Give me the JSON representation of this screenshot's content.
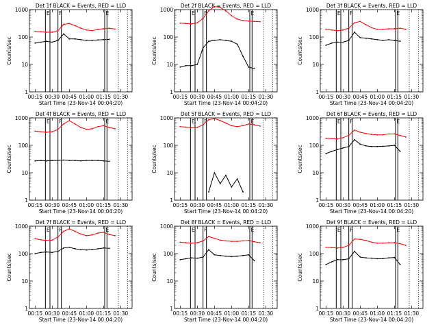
{
  "colors": {
    "events": "#000000",
    "lld": "#ff0000",
    "axes": "#000000"
  },
  "chart_data": [
    {
      "type": "line",
      "title": "Det 1f BLACK = Events, RED = LLD",
      "xlabel": "Start Time (23-Nov-14 00:04:20)",
      "ylabel": "Counts/sec",
      "yscale": "log",
      "ylim": [
        1,
        1000
      ],
      "x_tick_labels": [
        "00:15",
        "00:30",
        "00:45",
        "01:00",
        "01:15",
        "01:30"
      ],
      "y_tick_labels": [
        "1",
        "10",
        "100",
        "1000"
      ],
      "x": [
        "00:10",
        "00:15",
        "00:20",
        "00:25",
        "00:30",
        "00:35",
        "00:40",
        "00:45",
        "00:50",
        "00:55",
        "01:00",
        "01:05",
        "01:10",
        "01:15",
        "01:20",
        "01:25"
      ],
      "series": [
        {
          "name": "LLD",
          "color": "red",
          "values": [
            null,
            160,
            155,
            150,
            150,
            170,
            290,
            310,
            260,
            210,
            180,
            170,
            190,
            200,
            210,
            195
          ]
        },
        {
          "name": "Events",
          "color": "black",
          "values": [
            null,
            60,
            65,
            70,
            65,
            75,
            130,
            85,
            85,
            80,
            75,
            75,
            78,
            80,
            82,
            null
          ]
        }
      ],
      "markers": [
        {
          "x": "00:24",
          "label": "E"
        },
        {
          "x": "00:28",
          "label": ""
        },
        {
          "x": "00:35",
          "label": "F"
        },
        {
          "x": "00:38",
          "label": ""
        },
        {
          "x": "01:16",
          "label": "E"
        },
        {
          "x": "01:18",
          "label": ""
        }
      ]
    },
    {
      "type": "line",
      "title": "Det 2f BLACK = Events, RED = LLD",
      "xlabel": "Start Time (23-Nov-14 00:04:20)",
      "ylabel": "Counts/sec",
      "yscale": "log",
      "ylim": [
        1,
        1000
      ],
      "x_tick_labels": [
        "00:15",
        "00:30",
        "00:45",
        "01:00",
        "01:15",
        "01:30"
      ],
      "y_tick_labels": [
        "1",
        "10",
        "100",
        "1000"
      ],
      "x": [
        "00:10",
        "00:15",
        "00:20",
        "00:25",
        "00:30",
        "00:35",
        "00:40",
        "00:45",
        "00:50",
        "00:55",
        "01:00",
        "01:05",
        "01:10",
        "01:15",
        "01:20",
        "01:25"
      ],
      "series": [
        {
          "name": "LLD",
          "color": "red",
          "values": [
            null,
            320,
            310,
            300,
            330,
            480,
            900,
            1300,
            1200,
            900,
            600,
            450,
            400,
            380,
            370,
            360
          ]
        },
        {
          "name": "Events",
          "color": "black",
          "values": [
            null,
            8,
            9,
            9,
            10,
            40,
            70,
            75,
            80,
            75,
            70,
            55,
            20,
            8,
            7,
            null
          ]
        }
      ],
      "markers": [
        {
          "x": "00:24",
          "label": "E"
        },
        {
          "x": "00:28",
          "label": ""
        },
        {
          "x": "00:35",
          "label": "F"
        },
        {
          "x": "00:38",
          "label": ""
        },
        {
          "x": "01:16",
          "label": "E"
        },
        {
          "x": "01:18",
          "label": ""
        }
      ]
    },
    {
      "type": "line",
      "title": "Det 3f BLACK = Events, RED = LLD",
      "xlabel": "Start Time (23-Nov-14 00:04:20)",
      "ylabel": "Counts/sec",
      "yscale": "log",
      "ylim": [
        1,
        1000
      ],
      "x_tick_labels": [
        "00:15",
        "00:30",
        "00:45",
        "01:00",
        "01:15",
        "01:30"
      ],
      "y_tick_labels": [
        "1",
        "10",
        "100",
        "1000"
      ],
      "x": [
        "00:10",
        "00:15",
        "00:20",
        "00:25",
        "00:30",
        "00:35",
        "00:40",
        "00:45",
        "00:50",
        "00:55",
        "01:00",
        "01:05",
        "01:10",
        "01:15",
        "01:20",
        "01:25"
      ],
      "series": [
        {
          "name": "LLD",
          "color": "red",
          "values": [
            null,
            190,
            180,
            170,
            180,
            210,
            330,
            370,
            280,
            220,
            190,
            190,
            200,
            200,
            210,
            190
          ]
        },
        {
          "name": "Events",
          "color": "black",
          "values": [
            null,
            50,
            60,
            65,
            65,
            75,
            150,
            95,
            90,
            85,
            80,
            75,
            80,
            75,
            70,
            null
          ]
        }
      ],
      "markers": [
        {
          "x": "00:24",
          "label": "E"
        },
        {
          "x": "00:28",
          "label": ""
        },
        {
          "x": "00:35",
          "label": "F"
        },
        {
          "x": "00:38",
          "label": ""
        },
        {
          "x": "01:16",
          "label": "E"
        },
        {
          "x": "01:18",
          "label": ""
        }
      ]
    },
    {
      "type": "line",
      "title": "Det 4f BLACK = Events, RED = LLD",
      "xlabel": "Start Time (23-Nov-14 00:04:20)",
      "ylabel": "Counts/sec",
      "yscale": "log",
      "ylim": [
        1,
        1000
      ],
      "x_tick_labels": [
        "00:15",
        "00:30",
        "00:45",
        "01:00",
        "01:15",
        "01:30"
      ],
      "y_tick_labels": [
        "1",
        "10",
        "100",
        "1000"
      ],
      "x": [
        "00:10",
        "00:15",
        "00:20",
        "00:25",
        "00:30",
        "00:35",
        "00:40",
        "00:45",
        "00:50",
        "00:55",
        "01:00",
        "01:05",
        "01:10",
        "01:15",
        "01:20",
        "01:25"
      ],
      "series": [
        {
          "name": "LLD",
          "color": "red",
          "values": [
            null,
            330,
            310,
            300,
            310,
            380,
            600,
            800,
            600,
            450,
            380,
            400,
            480,
            520,
            450,
            400
          ]
        },
        {
          "name": "Events",
          "color": "black",
          "values": [
            null,
            27,
            28,
            27,
            28,
            28,
            29,
            28,
            28,
            27,
            28,
            28,
            28,
            27,
            26,
            null
          ]
        }
      ],
      "markers": [
        {
          "x": "00:24",
          "label": "E"
        },
        {
          "x": "00:28",
          "label": ""
        },
        {
          "x": "00:35",
          "label": "F"
        },
        {
          "x": "00:38",
          "label": ""
        },
        {
          "x": "01:16",
          "label": "E"
        },
        {
          "x": "01:18",
          "label": ""
        }
      ]
    },
    {
      "type": "line",
      "title": "Det 5f BLACK = Events, RED = LLD",
      "xlabel": "Start Time (23-Nov-14 00:04:20)",
      "ylabel": "Counts/sec",
      "yscale": "log",
      "ylim": [
        1,
        1000
      ],
      "x_tick_labels": [
        "00:15",
        "00:30",
        "00:45",
        "01:00",
        "01:15",
        "01:30"
      ],
      "y_tick_labels": [
        "1",
        "10",
        "100",
        "1000"
      ],
      "x": [
        "00:10",
        "00:15",
        "00:20",
        "00:25",
        "00:30",
        "00:35",
        "00:40",
        "00:45",
        "00:50",
        "00:55",
        "01:00",
        "01:05",
        "01:10",
        "01:15",
        "01:20",
        "01:25"
      ],
      "series": [
        {
          "name": "LLD",
          "color": "red",
          "values": [
            null,
            480,
            460,
            440,
            450,
            560,
            850,
            950,
            800,
            650,
            520,
            480,
            520,
            600,
            560,
            500
          ]
        },
        {
          "name": "Events",
          "color": "black",
          "values": [
            null,
            null,
            null,
            null,
            null,
            null,
            2,
            10,
            4,
            8,
            3,
            6,
            2,
            null,
            null,
            null
          ]
        }
      ],
      "markers": [
        {
          "x": "00:24",
          "label": "E"
        },
        {
          "x": "00:28",
          "label": ""
        },
        {
          "x": "00:35",
          "label": "F"
        },
        {
          "x": "00:38",
          "label": ""
        },
        {
          "x": "01:16",
          "label": "E"
        },
        {
          "x": "01:18",
          "label": ""
        }
      ]
    },
    {
      "type": "line",
      "title": "Det 6f BLACK = Events, RED = LLD",
      "xlabel": "Start Time (23-Nov-14 00:04:20)",
      "ylabel": "Counts/sec",
      "yscale": "log",
      "ylim": [
        1,
        1000
      ],
      "x_tick_labels": [
        "00:15",
        "00:30",
        "00:45",
        "01:00",
        "01:15",
        "01:30"
      ],
      "y_tick_labels": [
        "1",
        "10",
        "100",
        "1000"
      ],
      "x": [
        "00:10",
        "00:15",
        "00:20",
        "00:25",
        "00:30",
        "00:35",
        "00:40",
        "00:45",
        "00:50",
        "00:55",
        "01:00",
        "01:05",
        "01:10",
        "01:15",
        "01:20",
        "01:25"
      ],
      "series": [
        {
          "name": "LLD",
          "color": "red",
          "values": [
            null,
            180,
            175,
            170,
            190,
            230,
            360,
            300,
            270,
            250,
            240,
            240,
            260,
            260,
            230,
            200
          ]
        },
        {
          "name": "Events",
          "color": "black",
          "values": [
            null,
            50,
            60,
            70,
            80,
            90,
            160,
            110,
            95,
            90,
            90,
            92,
            95,
            100,
            60,
            null
          ]
        }
      ],
      "markers": [
        {
          "x": "00:24",
          "label": "E"
        },
        {
          "x": "00:28",
          "label": ""
        },
        {
          "x": "00:35",
          "label": "F"
        },
        {
          "x": "00:38",
          "label": ""
        },
        {
          "x": "01:16",
          "label": "E"
        },
        {
          "x": "01:18",
          "label": ""
        }
      ]
    },
    {
      "type": "line",
      "title": "Det 7f BLACK = Events, RED = LLD",
      "xlabel": "Start Time (23-Nov-14 00:04:20)",
      "ylabel": "Counts/sec",
      "yscale": "log",
      "ylim": [
        1,
        1000
      ],
      "x_tick_labels": [
        "00:15",
        "00:30",
        "00:45",
        "01:00",
        "01:15",
        "01:30"
      ],
      "y_tick_labels": [
        "1",
        "10",
        "100",
        "1000"
      ],
      "x": [
        "00:10",
        "00:15",
        "00:20",
        "00:25",
        "00:30",
        "00:35",
        "00:40",
        "00:45",
        "00:50",
        "00:55",
        "01:00",
        "01:05",
        "01:10",
        "01:15",
        "01:20",
        "01:25"
      ],
      "series": [
        {
          "name": "LLD",
          "color": "red",
          "values": [
            null,
            350,
            320,
            300,
            310,
            400,
            650,
            800,
            650,
            520,
            450,
            480,
            560,
            600,
            500,
            450
          ]
        },
        {
          "name": "Events",
          "color": "black",
          "values": [
            null,
            100,
            110,
            115,
            110,
            120,
            160,
            170,
            150,
            140,
            135,
            140,
            150,
            160,
            155,
            null
          ]
        }
      ],
      "markers": [
        {
          "x": "00:24",
          "label": "E"
        },
        {
          "x": "00:28",
          "label": ""
        },
        {
          "x": "00:35",
          "label": "F"
        },
        {
          "x": "00:38",
          "label": ""
        },
        {
          "x": "01:16",
          "label": "E"
        },
        {
          "x": "01:18",
          "label": ""
        }
      ]
    },
    {
      "type": "line",
      "title": "Det 8f BLACK = Events, RED = LLD",
      "xlabel": "Start Time (23-Nov-14 00:04:20)",
      "ylabel": "Counts/sec",
      "yscale": "log",
      "ylim": [
        1,
        1000
      ],
      "x_tick_labels": [
        "00:15",
        "00:30",
        "00:45",
        "01:00",
        "01:15",
        "01:30"
      ],
      "y_tick_labels": [
        "1",
        "10",
        "100",
        "1000"
      ],
      "x": [
        "00:10",
        "00:15",
        "00:20",
        "00:25",
        "00:30",
        "00:35",
        "00:40",
        "00:45",
        "00:50",
        "00:55",
        "01:00",
        "01:05",
        "01:10",
        "01:15",
        "01:20",
        "01:25"
      ],
      "series": [
        {
          "name": "LLD",
          "color": "red",
          "values": [
            null,
            260,
            250,
            240,
            250,
            290,
            420,
            360,
            310,
            290,
            280,
            280,
            290,
            300,
            270,
            250
          ]
        },
        {
          "name": "Events",
          "color": "black",
          "values": [
            null,
            60,
            65,
            70,
            68,
            75,
            140,
            90,
            85,
            80,
            78,
            80,
            85,
            90,
            55,
            null
          ]
        }
      ],
      "markers": [
        {
          "x": "00:24",
          "label": "E"
        },
        {
          "x": "00:28",
          "label": ""
        },
        {
          "x": "00:35",
          "label": "F"
        },
        {
          "x": "00:38",
          "label": ""
        },
        {
          "x": "01:16",
          "label": "E"
        },
        {
          "x": "01:18",
          "label": ""
        }
      ]
    },
    {
      "type": "line",
      "title": "Det 9f BLACK = Events, RED = LLD",
      "xlabel": "Start Time (23-Nov-14 00:04:20)",
      "ylabel": "Counts/sec",
      "yscale": "log",
      "ylim": [
        1,
        1000
      ],
      "x_tick_labels": [
        "00:15",
        "00:30",
        "00:45",
        "01:00",
        "01:15",
        "01:30"
      ],
      "y_tick_labels": [
        "1",
        "10",
        "100",
        "1000"
      ],
      "x": [
        "00:10",
        "00:15",
        "00:20",
        "00:25",
        "00:30",
        "00:35",
        "00:40",
        "00:45",
        "00:50",
        "00:55",
        "01:00",
        "01:05",
        "01:10",
        "01:15",
        "01:20",
        "01:25"
      ],
      "series": [
        {
          "name": "LLD",
          "color": "red",
          "values": [
            null,
            170,
            165,
            160,
            170,
            200,
            340,
            330,
            300,
            260,
            240,
            240,
            250,
            250,
            230,
            200
          ]
        },
        {
          "name": "Events",
          "color": "black",
          "values": [
            null,
            40,
            50,
            60,
            60,
            65,
            120,
            75,
            70,
            68,
            65,
            66,
            70,
            72,
            40,
            null
          ]
        }
      ],
      "markers": [
        {
          "x": "00:24",
          "label": "E"
        },
        {
          "x": "00:28",
          "label": ""
        },
        {
          "x": "00:35",
          "label": "F"
        },
        {
          "x": "00:38",
          "label": ""
        },
        {
          "x": "01:16",
          "label": "E"
        },
        {
          "x": "01:18",
          "label": ""
        }
      ]
    }
  ]
}
